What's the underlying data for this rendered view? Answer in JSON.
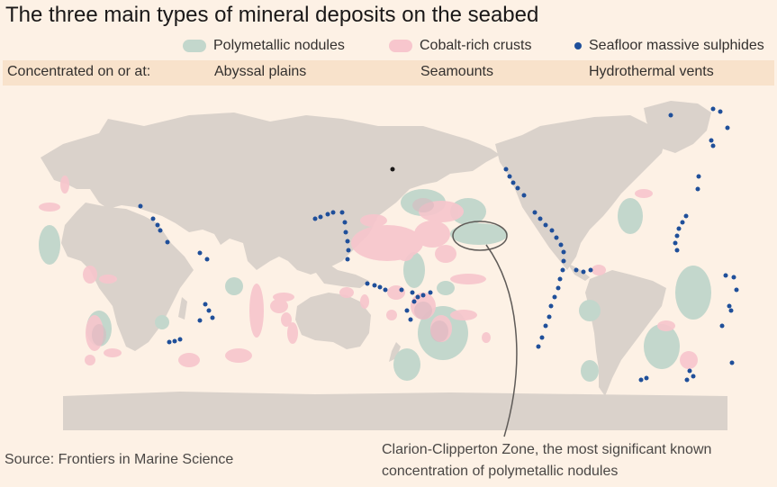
{
  "title": "The three main types of mineral deposits on the seabed",
  "legend": [
    {
      "label": "Polymetallic nodules",
      "color": "#c3d7cc",
      "kind": "swatch"
    },
    {
      "label": "Cobalt-rich crusts",
      "color": "#f7c6cd",
      "kind": "swatch"
    },
    {
      "label": "Seafloor massive sulphides",
      "color": "#1f4f9a",
      "kind": "dot"
    }
  ],
  "concentration": {
    "label": "Concentrated on or at:",
    "values": [
      "Abyssal plains",
      "Seamounts",
      "Hydrothermal vents"
    ]
  },
  "colors": {
    "background": "#fdf1e5",
    "land": "#dad2cb",
    "nodules": "#c3d7cc",
    "crusts": "#f7c6cd",
    "sulphides": "#1f4f9a"
  },
  "annotation": "Clarion-Clipperton Zone, the most significant known concentration of polymetallic nodules",
  "annotation_lines": [
    "Clarion-Clipperton Zone, the most significant known",
    "concentration of polymetallic nodules"
  ],
  "source": "Source: Frontiers in Marine Science"
}
